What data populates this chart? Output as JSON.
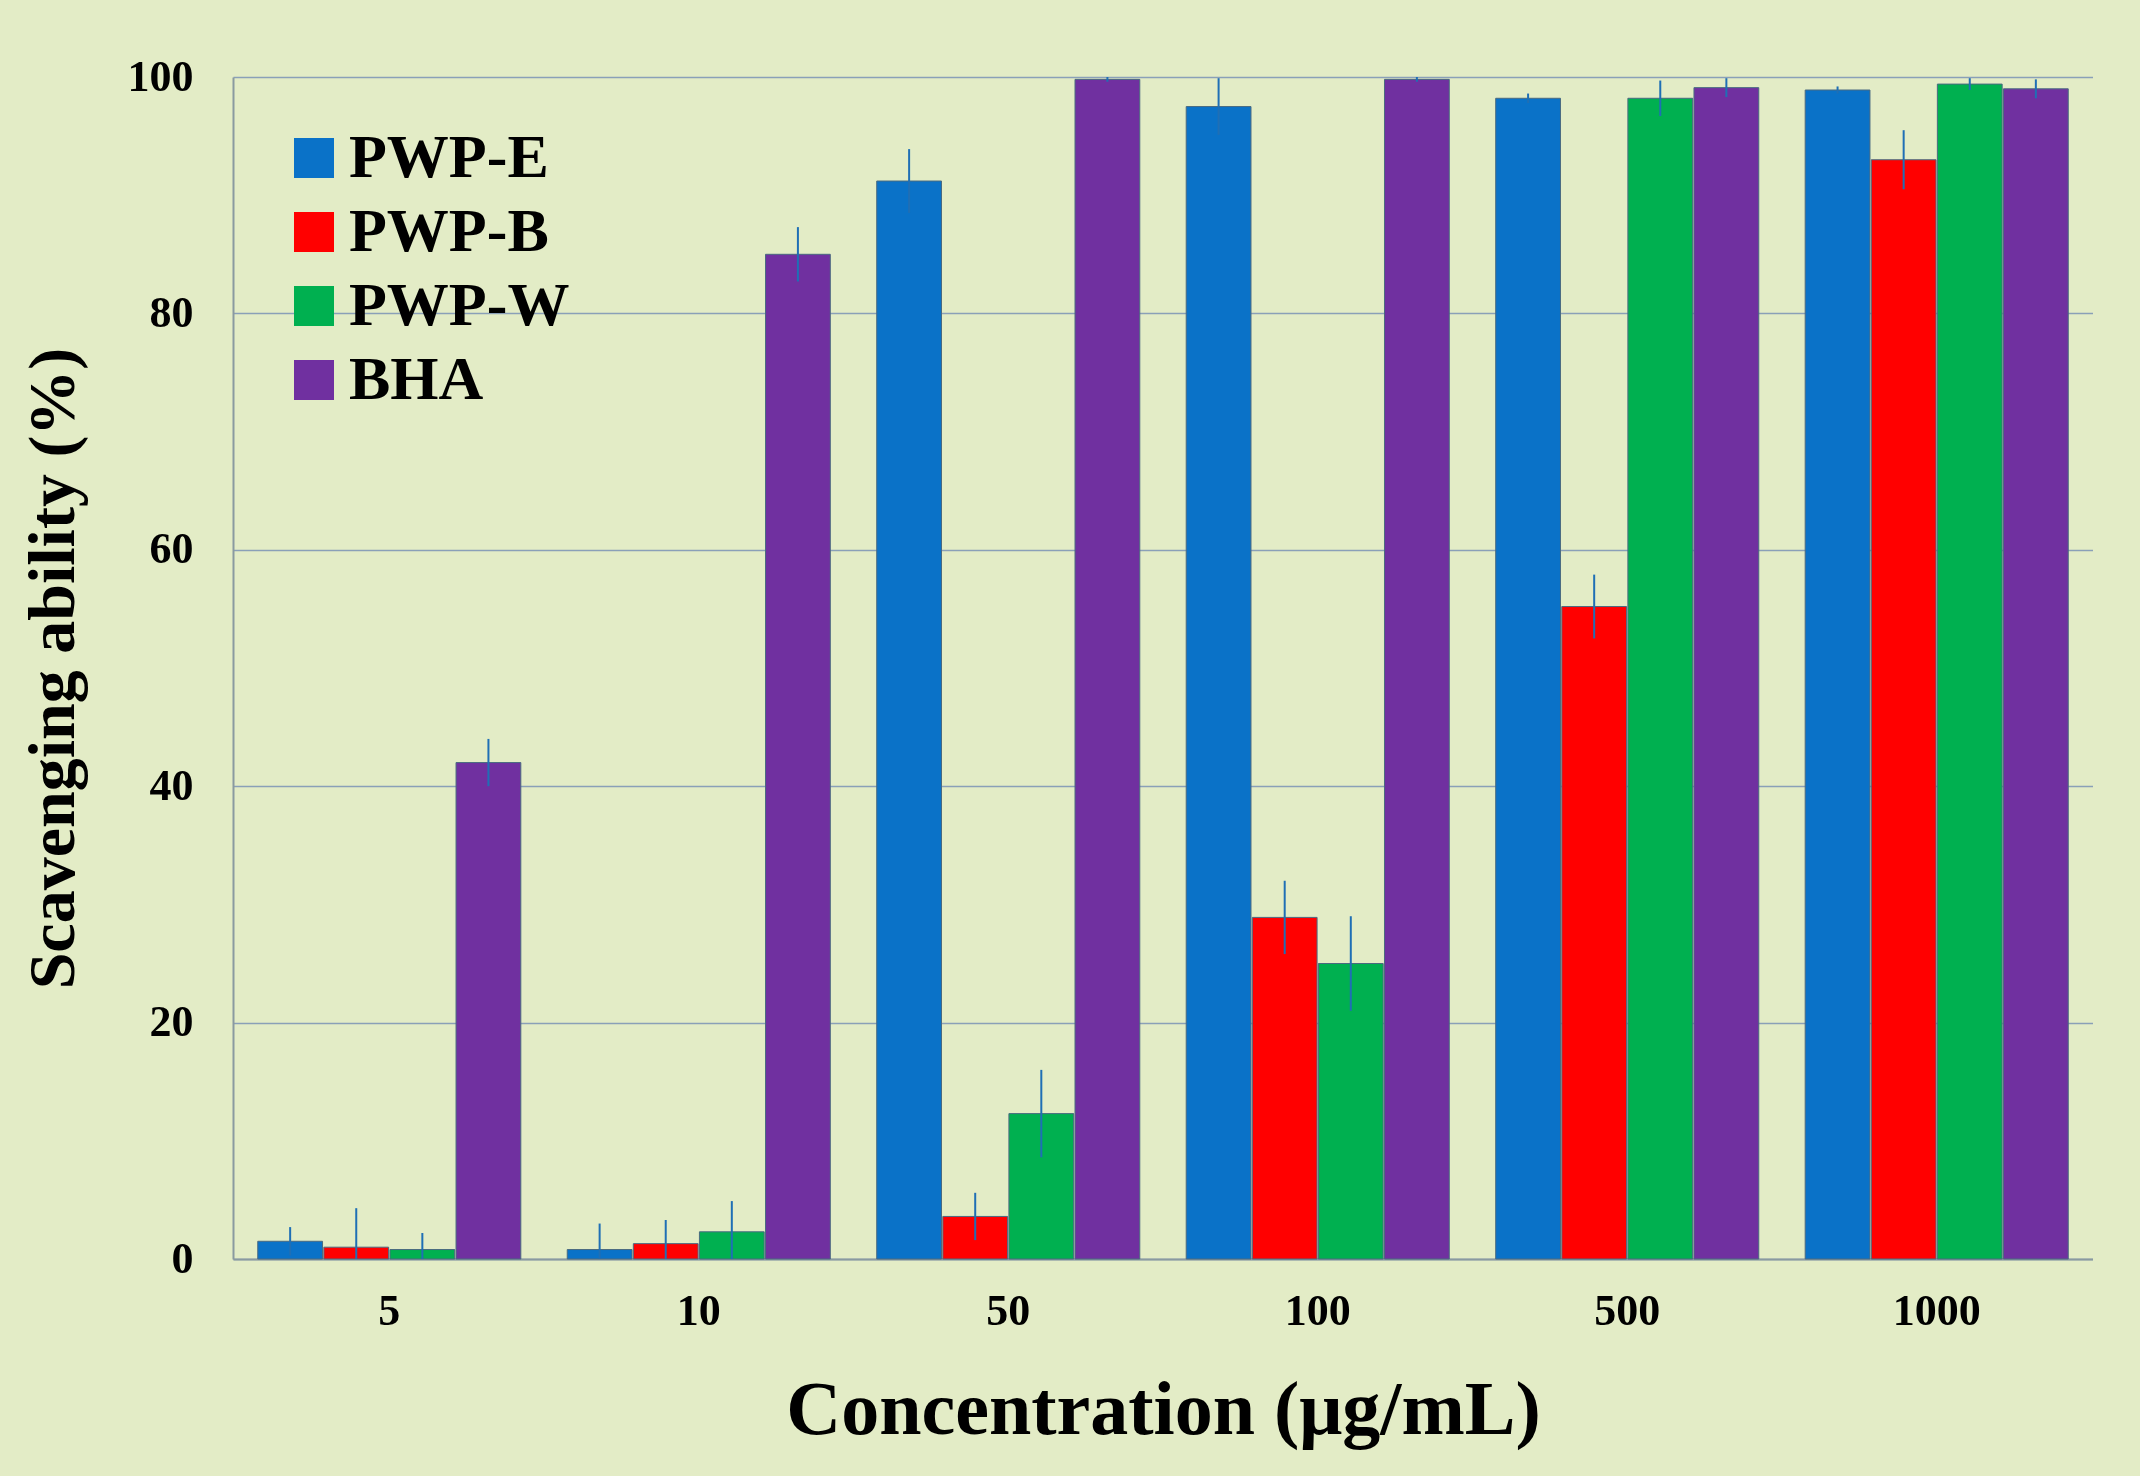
{
  "chart_data": {
    "type": "bar",
    "xlabel": "Concentration (μg/mL)",
    "ylabel": "Scavenging ability  (%)",
    "categories": [
      "5",
      "10",
      "50",
      "100",
      "500",
      "1000"
    ],
    "series": [
      {
        "name": "PWP-E",
        "color": "#0a72c8",
        "values": [
          1.5,
          0.8,
          91.2,
          97.5,
          98.2,
          98.9
        ],
        "errors": [
          1.2,
          [
            0,
            3.0
          ],
          2.7,
          2.4,
          0.4,
          0.3
        ]
      },
      {
        "name": "PWP-B",
        "color": "#ff0000",
        "values": [
          1.0,
          1.3,
          3.6,
          28.9,
          55.2,
          93.0
        ],
        "errors": [
          [
            0,
            4.3
          ],
          [
            0,
            3.3
          ],
          2.0,
          3.1,
          2.7,
          2.5
        ]
      },
      {
        "name": "PWP-W",
        "color": "#00b050",
        "values": [
          0.8,
          2.3,
          12.3,
          25.0,
          98.2,
          99.4
        ],
        "errors": [
          [
            0,
            2.2
          ],
          [
            0,
            4.9
          ],
          3.7,
          4.0,
          1.5,
          0.5
        ]
      },
      {
        "name": "BHA",
        "color": "#7030a0",
        "values": [
          42.0,
          85.0,
          99.8,
          99.8,
          99.1,
          99.0
        ],
        "errors": [
          2.0,
          2.3,
          0.2,
          0.2,
          0.8,
          0.8
        ]
      }
    ],
    "ylim": [
      0,
      100
    ],
    "yticks": [
      0,
      20,
      40,
      60,
      80,
      100
    ],
    "grid": "y",
    "legend": "top left"
  }
}
